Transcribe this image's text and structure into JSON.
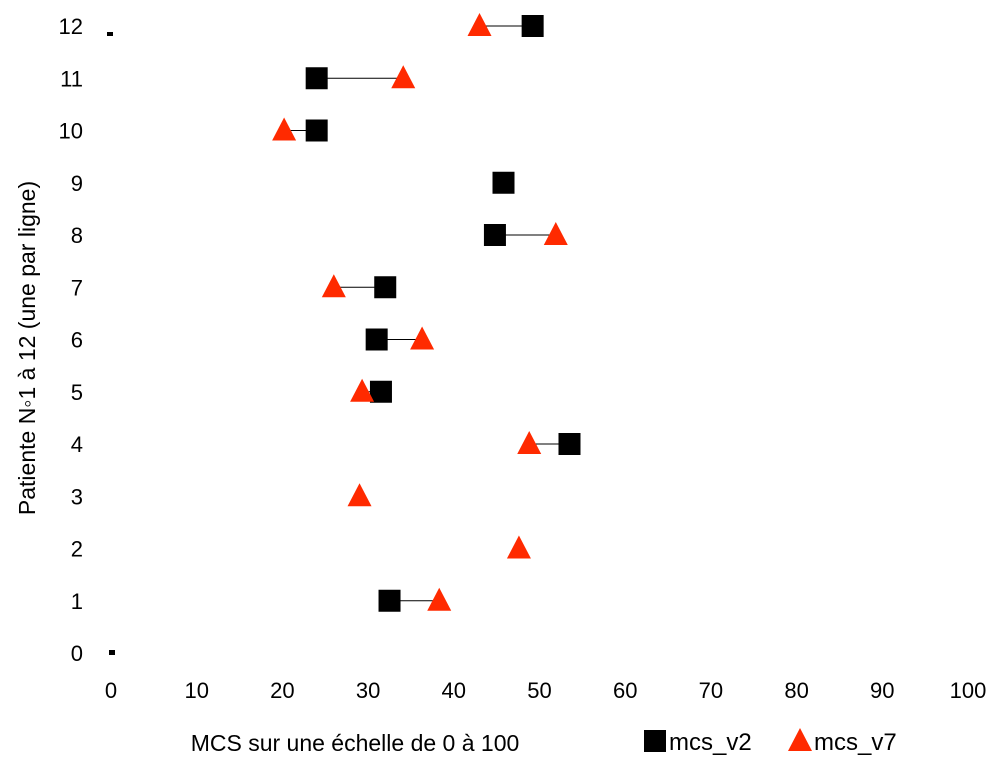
{
  "chart_data": {
    "type": "scatter",
    "title": "",
    "xlabel": "MCS sur une échelle de 0 à 100",
    "ylabel": "Patiente N◦1 à 12 (une par ligne)",
    "xlim": [
      0,
      100
    ],
    "ylim": [
      0,
      12
    ],
    "x_ticks": [
      "0",
      "10",
      "20",
      "30",
      "40",
      "50",
      "60",
      "70",
      "80",
      "90",
      "100"
    ],
    "y_ticks": [
      "0",
      "1",
      "2",
      "3",
      "4",
      "5",
      "6",
      "7",
      "8",
      "9",
      "10",
      "11",
      "12"
    ],
    "grid": false,
    "legend_position": "bottom-right",
    "series": [
      {
        "name": "mcs_v2",
        "marker": "square",
        "color": "#000000",
        "points": [
          {
            "x": 32.5,
            "y": 1
          },
          {
            "x": 53.5,
            "y": 4
          },
          {
            "x": 31.5,
            "y": 5
          },
          {
            "x": 31.0,
            "y": 6
          },
          {
            "x": 32.0,
            "y": 7
          },
          {
            "x": 44.8,
            "y": 8
          },
          {
            "x": 45.8,
            "y": 9
          },
          {
            "x": 24.0,
            "y": 10
          },
          {
            "x": 24.0,
            "y": 11
          },
          {
            "x": 49.2,
            "y": 12
          }
        ]
      },
      {
        "name": "mcs_v7",
        "marker": "triangle",
        "color": "#ff2a00",
        "points": [
          {
            "x": 38.3,
            "y": 1
          },
          {
            "x": 47.6,
            "y": 2
          },
          {
            "x": 29.0,
            "y": 3
          },
          {
            "x": 48.8,
            "y": 4
          },
          {
            "x": 29.3,
            "y": 5
          },
          {
            "x": 36.3,
            "y": 6
          },
          {
            "x": 26.0,
            "y": 7
          },
          {
            "x": 51.9,
            "y": 8
          },
          {
            "x": 20.2,
            "y": 10
          },
          {
            "x": 34.1,
            "y": 11
          },
          {
            "x": 43.0,
            "y": 12
          }
        ]
      }
    ]
  }
}
